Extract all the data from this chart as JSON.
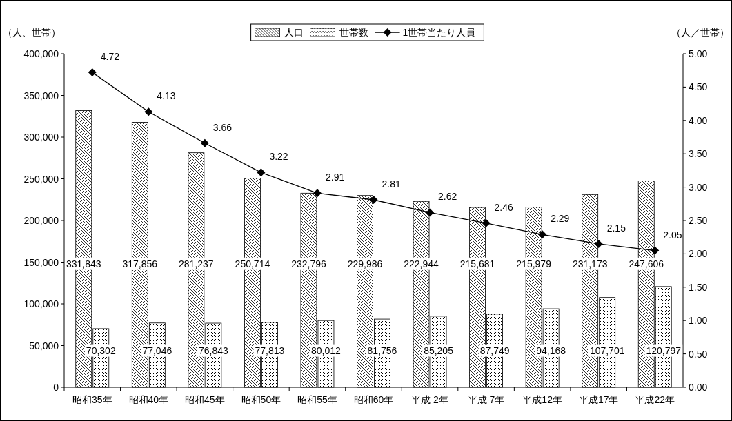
{
  "chart_data": {
    "type": "bar",
    "ylabel": "（人、世帯）",
    "y2label": "（人／世帯）",
    "legend": "top",
    "categories": [
      "昭和35年",
      "昭和40年",
      "昭和45年",
      "昭和50年",
      "昭和55年",
      "昭和60年",
      "平成 2年",
      "平成 7年",
      "平成12年",
      "平成17年",
      "平成22年"
    ],
    "ylim": [
      0,
      400000
    ],
    "yticks": [
      {
        "value": 0,
        "label": "0"
      },
      {
        "value": 50000,
        "label": "50,000"
      },
      {
        "value": 100000,
        "label": "100,000"
      },
      {
        "value": 150000,
        "label": "150,000"
      },
      {
        "value": 200000,
        "label": "200,000"
      },
      {
        "value": 250000,
        "label": "250,000"
      },
      {
        "value": 300000,
        "label": "300,000"
      },
      {
        "value": 350000,
        "label": "350,000"
      },
      {
        "value": 400000,
        "label": "400,000"
      }
    ],
    "y2lim": [
      0,
      5
    ],
    "y2ticks": [
      {
        "value": 0,
        "label": "0.00"
      },
      {
        "value": 0.5,
        "label": "0.50"
      },
      {
        "value": 1,
        "label": "1.00"
      },
      {
        "value": 1.5,
        "label": "1.50"
      },
      {
        "value": 2,
        "label": "2.00"
      },
      {
        "value": 2.5,
        "label": "2.50"
      },
      {
        "value": 3,
        "label": "3.00"
      },
      {
        "value": 3.5,
        "label": "3.50"
      },
      {
        "value": 4,
        "label": "4.00"
      },
      {
        "value": 4.5,
        "label": "4.50"
      },
      {
        "value": 5,
        "label": "5.00"
      }
    ],
    "series": [
      {
        "name": "人口",
        "color": "#000000",
        "values": [
          331843,
          317856,
          281237,
          250714,
          232796,
          229986,
          222944,
          215681,
          215979,
          231173,
          247606
        ],
        "value_labels": [
          "331,843",
          "317,856",
          "281,237",
          "250,714",
          "232,796",
          "229,986",
          "222,944",
          "215,681",
          "215,979",
          "231,173",
          "247,606"
        ]
      },
      {
        "name": "世帯数",
        "color": "#000000",
        "values": [
          70302,
          77046,
          76843,
          77813,
          80012,
          81756,
          85205,
          87749,
          94168,
          107701,
          120797
        ],
        "value_labels": [
          "70,302",
          "77,046",
          "76,843",
          "77,813",
          "80,012",
          "81,756",
          "85,205",
          "87,749",
          "94,168",
          "107,701",
          "120,797"
        ]
      },
      {
        "name": "1世帯当たり人員",
        "type": "line",
        "axis": "y2",
        "marker": "diamond",
        "color": "#000000",
        "values": [
          4.72,
          4.13,
          3.66,
          3.22,
          2.91,
          2.81,
          2.62,
          2.46,
          2.29,
          2.15,
          2.05
        ],
        "value_labels": [
          "4.72",
          "4.13",
          "3.66",
          "3.22",
          "2.91",
          "2.81",
          "2.62",
          "2.46",
          "2.29",
          "2.15",
          "2.05"
        ]
      }
    ]
  }
}
